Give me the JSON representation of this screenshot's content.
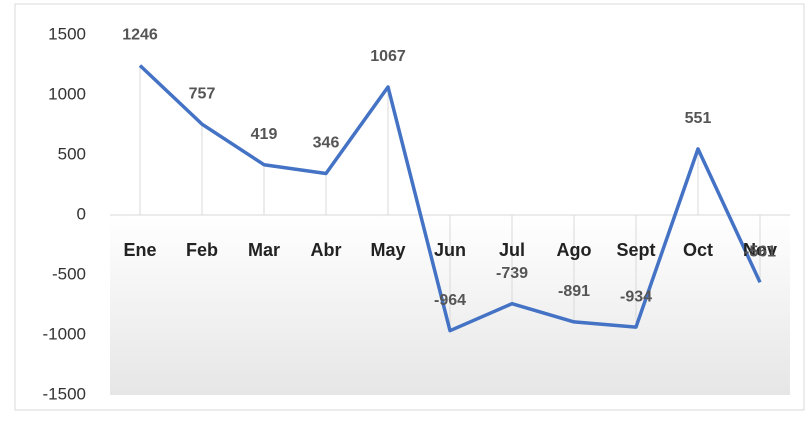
{
  "chart_data": {
    "type": "line",
    "categories": [
      "Ene",
      "Feb",
      "Mar",
      "Abr",
      "May",
      "Jun",
      "Jul",
      "Ago",
      "Sept",
      "Oct",
      "Nov"
    ],
    "values": [
      1246,
      757,
      419,
      346,
      1067,
      -964,
      -739,
      -891,
      -934,
      551,
      -561
    ],
    "color": "#4472c4",
    "ylim": [
      -1500,
      1500
    ],
    "yticks": [
      -1500,
      -1000,
      -500,
      0,
      500,
      1000,
      1500
    ]
  }
}
